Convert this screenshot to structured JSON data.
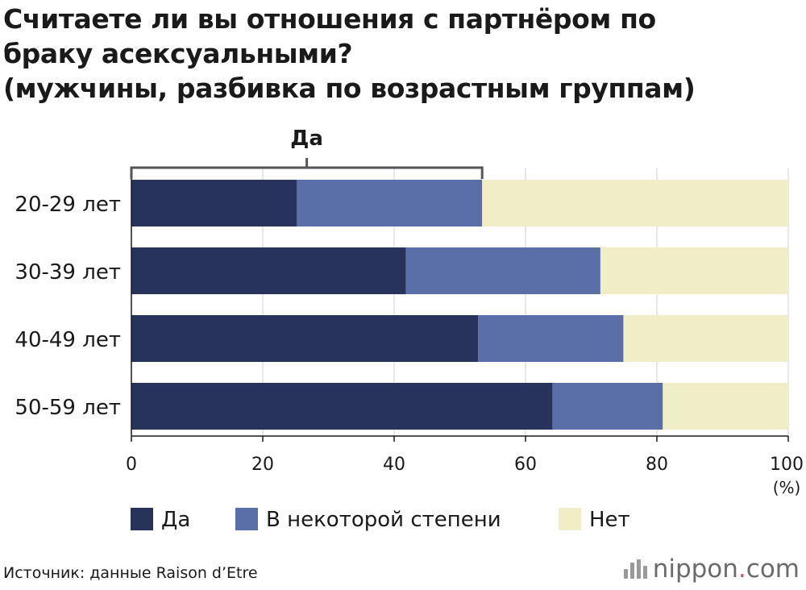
{
  "title_lines": [
    "Считаете ли вы отношения с партнёром по",
    "браку асексуальными?",
    "(мужчины, разбивка по возрастным группам)"
  ],
  "source": "Источник: данные Raison d’Etre",
  "brand": {
    "name": "nippon",
    "dot": ".",
    "tld": "com",
    "icon": "nippon-logo-icon"
  },
  "colors": {
    "yes": "#27335a",
    "somewhat": "#5a6ea8",
    "no": "#f0eec6",
    "grid": "#d0d0d0",
    "axis": "#1a1a1a",
    "bracket": "#555555",
    "brand_accent": "#e0457b"
  },
  "chart_data": {
    "type": "bar",
    "orientation": "horizontal",
    "stacked": true,
    "categories": [
      "20-29 лет",
      "30-39 лет",
      "40-49 лет",
      "50-59 лет"
    ],
    "series": [
      {
        "name": "Да",
        "key": "yes",
        "values": [
          25.2,
          41.8,
          52.8,
          64.1
        ]
      },
      {
        "name": "В некоторой степени",
        "key": "somewhat",
        "values": [
          28.2,
          29.6,
          22.1,
          16.8
        ]
      },
      {
        "name": "Нет",
        "key": "no",
        "values": [
          46.6,
          28.6,
          25.1,
          19.1
        ]
      }
    ],
    "x_ticks": [
      "0",
      "20",
      "40",
      "60",
      "80",
      "100"
    ],
    "xlim": [
      0,
      100
    ],
    "unit_label": "(%)",
    "grid": true,
    "legend_position": "bottom",
    "annotation": {
      "label": "Да",
      "spans_series": [
        "yes",
        "somewhat"
      ],
      "category": "20-29 лет"
    }
  }
}
